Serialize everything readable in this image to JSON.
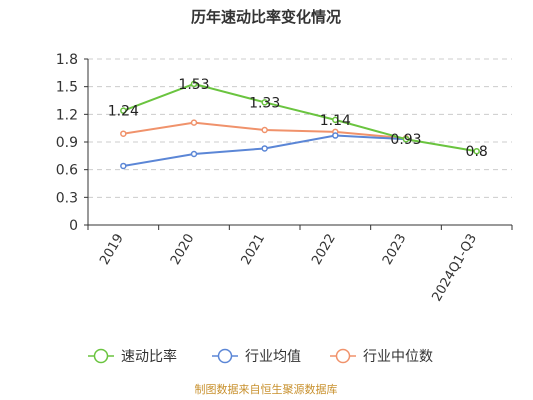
{
  "chart_data": {
    "type": "line",
    "title": "历年速动比率变化情况",
    "categories": [
      "2019",
      "2020",
      "2021",
      "2022",
      "2023",
      "2024Q1-Q3"
    ],
    "ylim": [
      0,
      1.8
    ],
    "yticks": [
      "0",
      "0.3",
      "0.6",
      "0.9",
      "1.2",
      "1.5",
      "1.8"
    ],
    "grid": true,
    "legend_position": "bottom",
    "series": [
      {
        "name": "速动比率",
        "color": "#6ac43f",
        "values": [
          1.24,
          1.53,
          1.33,
          1.14,
          0.93,
          0.8
        ],
        "labels": [
          "1.24",
          "1.53",
          "1.33",
          "1.14",
          "0.93",
          "0.8"
        ],
        "show_labels": true
      },
      {
        "name": "行业均值",
        "color": "#5b86d6",
        "values": [
          0.64,
          0.77,
          0.83,
          0.97,
          0.93,
          null
        ],
        "show_labels": false
      },
      {
        "name": "行业中位数",
        "color": "#f0926b",
        "values": [
          0.99,
          1.11,
          1.03,
          1.01,
          0.94,
          null
        ],
        "show_labels": false
      }
    ],
    "source": "制图数据来自恒生聚源数据库"
  }
}
